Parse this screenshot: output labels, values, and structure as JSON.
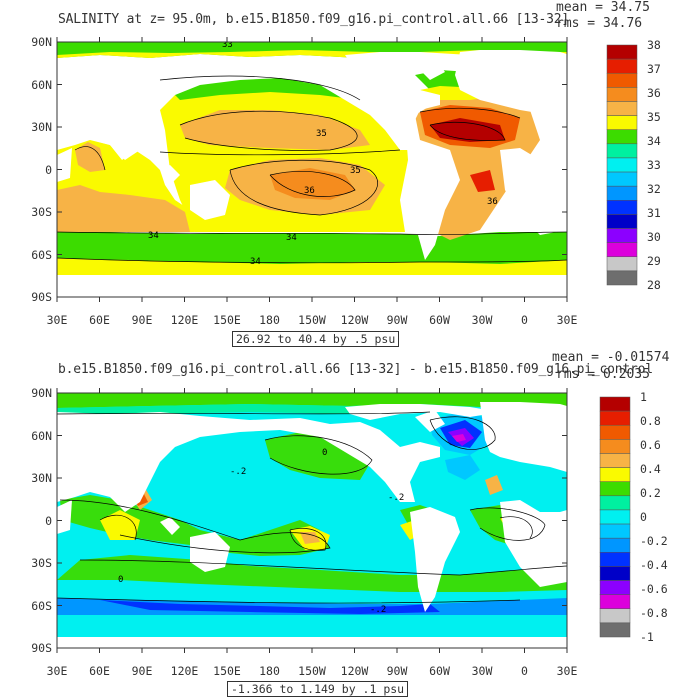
{
  "panels": [
    {
      "title": "SALINITY at z=  95.0m, b.e15.B1850.f09_g16.pi_control.all.66 [13-32]",
      "mean": "mean = 34.75",
      "rms": "rms = 34.76",
      "range_label": "26.92 to 40.4 by .5 psu",
      "lat_labels": [
        "90N",
        "60N",
        "30N",
        "0",
        "30S",
        "60S",
        "90S"
      ],
      "lon_labels": [
        "30E",
        "60E",
        "90E",
        "120E",
        "150E",
        "180",
        "150W",
        "120W",
        "90W",
        "60W",
        "30W",
        "0",
        "30E"
      ],
      "colorbar": {
        "labels": [
          "38",
          "37",
          "36",
          "35",
          "34",
          "33",
          "32",
          "31",
          "30",
          "29",
          "28"
        ],
        "colors": [
          "#b40000",
          "#e61e00",
          "#f05a00",
          "#f58c1e",
          "#f7b346",
          "#fafa00",
          "#3cdc00",
          "#00f0a0",
          "#00f0f0",
          "#00c8ff",
          "#0096ff",
          "#0032ff",
          "#0000c8",
          "#8c00ff",
          "#dc00dc",
          "#c8c8c8",
          "#6e6e6e"
        ]
      },
      "contour_labels": [
        "33",
        "35",
        "35",
        "36",
        "36",
        "34",
        "34",
        "34"
      ]
    },
    {
      "title": "b.e15.B1850.f09_g16.pi_control.all.66 [13-32] - b.e15.B1850.f09_g16.pi_control",
      "mean": "mean = -0.01574",
      "rms": "rms = 0.2035",
      "range_label": "-1.366 to 1.149 by .1 psu",
      "lat_labels": [
        "90N",
        "60N",
        "30N",
        "0",
        "30S",
        "60S",
        "90S"
      ],
      "lon_labels": [
        "30E",
        "60E",
        "90E",
        "120E",
        "150E",
        "180",
        "150W",
        "120W",
        "90W",
        "60W",
        "30W",
        "0",
        "30E"
      ],
      "colorbar": {
        "labels": [
          "1",
          "0.8",
          "0.6",
          "0.4",
          "0.2",
          "0",
          "-0.2",
          "-0.4",
          "-0.6",
          "-0.8",
          "-1"
        ],
        "colors": [
          "#b40000",
          "#e61e00",
          "#f05a00",
          "#f58c1e",
          "#f7b346",
          "#fafa00",
          "#3cdc00",
          "#00f0a0",
          "#00f0f0",
          "#00c8ff",
          "#0096ff",
          "#0032ff",
          "#0000c8",
          "#8c00ff",
          "#dc00dc",
          "#c8c8c8",
          "#6e6e6e"
        ]
      },
      "contour_labels": [
        "0",
        "-.2",
        "-.2",
        "0",
        "-.2"
      ]
    }
  ]
}
